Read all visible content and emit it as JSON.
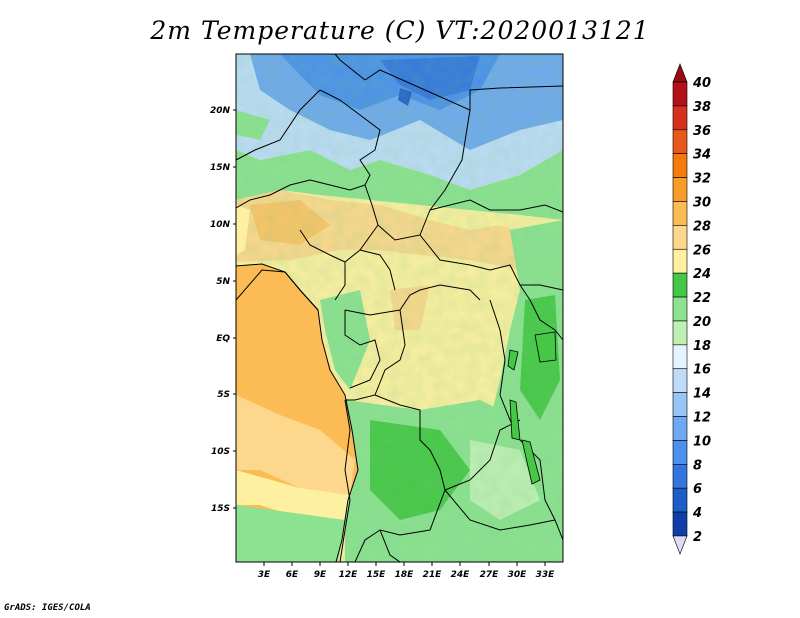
{
  "title": "2m Temperature (C) VT:2020013121",
  "footer": "GrADS: IGES/COLA",
  "map": {
    "lat_labels": [
      "20N",
      "15N",
      "10N",
      "5N",
      "EQ",
      "5S",
      "10S",
      "15S"
    ],
    "lon_labels": [
      "3E",
      "6E",
      "9E",
      "12E",
      "15E",
      "18E",
      "21E",
      "24E",
      "27E",
      "30E",
      "33E"
    ]
  },
  "colorbar": {
    "levels": [
      "2",
      "4",
      "6",
      "8",
      "10",
      "12",
      "14",
      "16",
      "18",
      "20",
      "22",
      "24",
      "26",
      "28",
      "30",
      "32",
      "34",
      "36",
      "38",
      "40"
    ],
    "colors": [
      "#1c1c8c",
      "#0f3ea8",
      "#1e5ec9",
      "#3376e0",
      "#4a90ec",
      "#6ea8f0",
      "#96c4f4",
      "#bedcf8",
      "#e4f4ff",
      "#bff0b4",
      "#8ce290",
      "#46c846",
      "#fdf0a0",
      "#fdd88c",
      "#fcbc55",
      "#f89c28",
      "#f57a0e",
      "#e85818",
      "#d8301c",
      "#b4101a",
      "#9a0a10"
    ],
    "under_color": "#dcdcf5"
  }
}
